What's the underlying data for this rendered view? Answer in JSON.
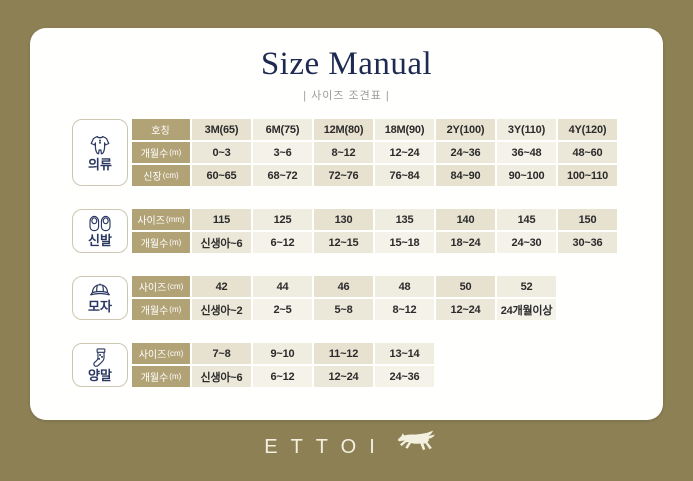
{
  "title": "Size Manual",
  "subtitle": "| 사이즈 조견표 |",
  "colors": {
    "background_olive": "#8d8055",
    "card_white": "#fffffd",
    "title_navy": "#1e2a52",
    "header_cell_khaki": "#b2a377",
    "cell_beige_dark": "#e7e1d0",
    "cell_beige_light": "#f4f2e9",
    "brand_cream": "#f4f0df"
  },
  "sections": [
    {
      "id": "clothing",
      "label": "의류",
      "icon": "romper-icon",
      "rows": [
        {
          "header": "호칭",
          "unit": "",
          "values": [
            "3M(65)",
            "6M(75)",
            "12M(80)",
            "18M(90)",
            "2Y(100)",
            "3Y(110)",
            "4Y(120)"
          ]
        },
        {
          "header": "개월수",
          "unit": "(m)",
          "values": [
            "0~3",
            "3~6",
            "8~12",
            "12~24",
            "24~36",
            "36~48",
            "48~60"
          ]
        },
        {
          "header": "신장",
          "unit": "(cm)",
          "values": [
            "60~65",
            "68~72",
            "72~76",
            "76~84",
            "84~90",
            "90~100",
            "100~110"
          ]
        }
      ]
    },
    {
      "id": "shoes",
      "label": "신발",
      "icon": "shoes-icon",
      "rows": [
        {
          "header": "사이즈",
          "unit": "(mm)",
          "values": [
            "115",
            "125",
            "130",
            "135",
            "140",
            "145",
            "150"
          ]
        },
        {
          "header": "개월수",
          "unit": "(m)",
          "values": [
            "신생아~6",
            "6~12",
            "12~15",
            "15~18",
            "18~24",
            "24~30",
            "30~36"
          ]
        }
      ]
    },
    {
      "id": "hat",
      "label": "모자",
      "icon": "cap-icon",
      "rows": [
        {
          "header": "사이즈",
          "unit": "(cm)",
          "values": [
            "42",
            "44",
            "46",
            "48",
            "50",
            "52"
          ]
        },
        {
          "header": "개월수",
          "unit": "(m)",
          "values": [
            "신생아~2",
            "2~5",
            "5~8",
            "8~12",
            "12~24",
            "24개월이상"
          ]
        }
      ]
    },
    {
      "id": "socks",
      "label": "양말",
      "icon": "socks-icon",
      "rows": [
        {
          "header": "사이즈",
          "unit": "(cm)",
          "values": [
            "7~8",
            "9~10",
            "11~12",
            "13~14"
          ]
        },
        {
          "header": "개월수",
          "unit": "(m)",
          "values": [
            "신생아~6",
            "6~12",
            "12~24",
            "24~36"
          ]
        }
      ]
    }
  ],
  "footer": {
    "brand": "ETTOI",
    "logo_icon": "horse-icon"
  },
  "chart_data": [
    {
      "type": "table",
      "title": "의류",
      "row_labels": [
        "호칭",
        "개월수(m)",
        "신장(cm)"
      ],
      "rows": [
        [
          "3M(65)",
          "6M(75)",
          "12M(80)",
          "18M(90)",
          "2Y(100)",
          "3Y(110)",
          "4Y(120)"
        ],
        [
          "0~3",
          "3~6",
          "8~12",
          "12~24",
          "24~36",
          "36~48",
          "48~60"
        ],
        [
          "60~65",
          "68~72",
          "72~76",
          "76~84",
          "84~90",
          "90~100",
          "100~110"
        ]
      ]
    },
    {
      "type": "table",
      "title": "신발",
      "row_labels": [
        "사이즈(mm)",
        "개월수(m)"
      ],
      "rows": [
        [
          "115",
          "125",
          "130",
          "135",
          "140",
          "145",
          "150"
        ],
        [
          "신생아~6",
          "6~12",
          "12~15",
          "15~18",
          "18~24",
          "24~30",
          "30~36"
        ]
      ]
    },
    {
      "type": "table",
      "title": "모자",
      "row_labels": [
        "사이즈(cm)",
        "개월수(m)"
      ],
      "rows": [
        [
          "42",
          "44",
          "46",
          "48",
          "50",
          "52"
        ],
        [
          "신생아~2",
          "2~5",
          "5~8",
          "8~12",
          "12~24",
          "24개월이상"
        ]
      ]
    },
    {
      "type": "table",
      "title": "양말",
      "row_labels": [
        "사이즈(cm)",
        "개월수(m)"
      ],
      "rows": [
        [
          "7~8",
          "9~10",
          "11~12",
          "13~14"
        ],
        [
          "신생아~6",
          "6~12",
          "12~24",
          "24~36"
        ]
      ]
    }
  ]
}
